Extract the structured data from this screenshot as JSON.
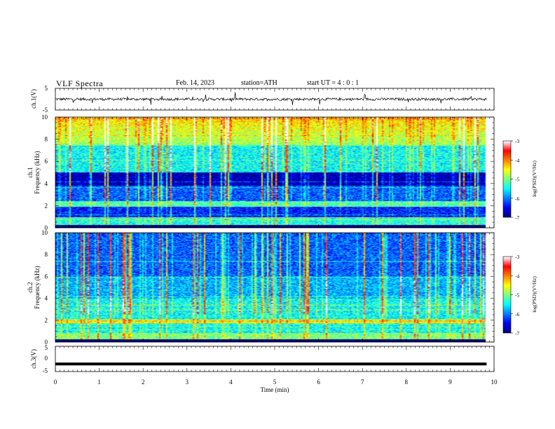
{
  "header": {
    "title": "VLF  Spectra",
    "date": "Feb. 14, 2023",
    "station": "station=ATH",
    "start": "start  UT  =   4  : 0   : 1"
  },
  "chart_data": [
    {
      "type": "line",
      "ylabel": "ch.1(V)",
      "ylim": [
        -5,
        5
      ],
      "yticks": [
        "5",
        "-5"
      ],
      "xlim": [
        0,
        10
      ],
      "baseline_v": 0.0,
      "noise_amplitude_v": 0.6,
      "end_min": 9.83
    },
    {
      "type": "heatmap",
      "ylabel_lines": [
        "ch.1",
        "Frequency  (kHz)"
      ],
      "ylim": [
        0,
        10
      ],
      "yticks": [
        "0",
        "2",
        "4",
        "6",
        "8",
        "10"
      ],
      "xlim": [
        0,
        10
      ],
      "colorbar": {
        "label": "log(PSD)(V²/Hz)",
        "ticks": [
          "-3",
          "-4",
          "-5",
          "-6",
          "-7"
        ],
        "range": [
          -7,
          -3
        ]
      }
    },
    {
      "type": "heatmap",
      "ylabel_lines": [
        "ch.2",
        "Frequency  (kHz)"
      ],
      "ylim": [
        0,
        10
      ],
      "yticks": [
        "0",
        "2",
        "4",
        "6",
        "8",
        "10"
      ],
      "xlim": [
        0,
        10
      ],
      "colorbar": {
        "label": "log(PSD)(V²/Hz)",
        "ticks": [
          "-3",
          "-4",
          "-5",
          "-6",
          "-7"
        ],
        "range": [
          -7,
          -3
        ]
      }
    },
    {
      "type": "line",
      "ylabel": "ch.3(V)",
      "ylim": [
        -5,
        5
      ],
      "yticks": [
        "5",
        "0",
        "-5"
      ],
      "xlim": [
        0,
        10
      ],
      "baseline_v": -2.0,
      "end_min": 9.83
    }
  ],
  "x_axis": {
    "label": "Time  (min)",
    "ticks": [
      "0",
      "1",
      "2",
      "3",
      "4",
      "5",
      "6",
      "7",
      "8",
      "9",
      "10"
    ]
  },
  "colors": {
    "colormap": [
      "#00007f",
      "#0000ff",
      "#007fff",
      "#00ffff",
      "#7fff7f",
      "#ffff00",
      "#ff7f00",
      "#ff0000",
      "#ffffff"
    ]
  }
}
